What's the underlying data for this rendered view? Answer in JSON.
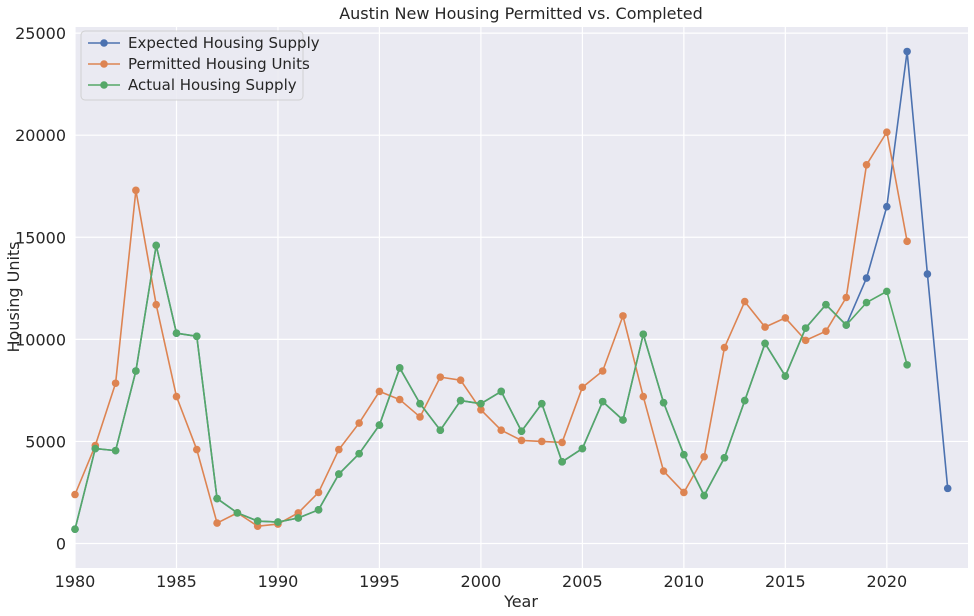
{
  "chart_data": {
    "type": "line",
    "title": "Austin New Housing Permitted vs. Completed",
    "xlabel": "Year",
    "ylabel": "Housing Units",
    "xlim": [
      1980,
      2024
    ],
    "ylim": [
      -1200,
      25300
    ],
    "x_ticks": [
      1980,
      1985,
      1990,
      1995,
      2000,
      2005,
      2010,
      2015,
      2020
    ],
    "y_ticks": [
      0,
      5000,
      10000,
      15000,
      20000,
      25000
    ],
    "grid": true,
    "legend_position": "top-left",
    "background": "#eaeaf2",
    "series": [
      {
        "name": "Expected Housing Supply",
        "color": "#4c72b0",
        "x": [
          1980,
          1981,
          1982,
          1983,
          1984,
          1985,
          1986,
          1987,
          1988,
          1989,
          1990,
          1991,
          1992,
          1993,
          1994,
          1995,
          1996,
          1997,
          1998,
          1999,
          2000,
          2001,
          2002,
          2003,
          2004,
          2005,
          2006,
          2007,
          2008,
          2009,
          2010,
          2011,
          2012,
          2013,
          2014,
          2015,
          2016,
          2017,
          2018,
          2019,
          2020,
          2021,
          2022,
          2023
        ],
        "values": [
          700,
          4650,
          4550,
          8450,
          14600,
          10300,
          10150,
          2200,
          1500,
          1100,
          1050,
          1250,
          1650,
          3400,
          4400,
          5800,
          8600,
          6850,
          5550,
          7000,
          6850,
          7450,
          5500,
          6850,
          4000,
          4650,
          6950,
          6050,
          10250,
          6900,
          4350,
          2350,
          4200,
          7000,
          9800,
          8200,
          10550,
          11700,
          10700,
          13000,
          16500,
          24100,
          13200,
          2700
        ]
      },
      {
        "name": "Permitted Housing Units",
        "color": "#dd8452",
        "x": [
          1980,
          1981,
          1982,
          1983,
          1984,
          1985,
          1986,
          1987,
          1988,
          1989,
          1990,
          1991,
          1992,
          1993,
          1994,
          1995,
          1996,
          1997,
          1998,
          1999,
          2000,
          2001,
          2002,
          2003,
          2004,
          2005,
          2006,
          2007,
          2008,
          2009,
          2010,
          2011,
          2012,
          2013,
          2014,
          2015,
          2016,
          2017,
          2018,
          2019,
          2020,
          2021
        ],
        "values": [
          2400,
          4800,
          7850,
          17300,
          11700,
          7200,
          4600,
          1000,
          1500,
          850,
          950,
          1500,
          2500,
          4600,
          5900,
          7450,
          7050,
          6200,
          8150,
          8000,
          6550,
          5550,
          5050,
          5000,
          4950,
          7650,
          8450,
          11150,
          7200,
          3550,
          2500,
          4250,
          9600,
          11850,
          10600,
          11050,
          9950,
          10400,
          12050,
          18550,
          20150,
          14800
        ]
      },
      {
        "name": "Actual Housing Supply",
        "color": "#55a868",
        "x": [
          1980,
          1981,
          1982,
          1983,
          1984,
          1985,
          1986,
          1987,
          1988,
          1989,
          1990,
          1991,
          1992,
          1993,
          1994,
          1995,
          1996,
          1997,
          1998,
          1999,
          2000,
          2001,
          2002,
          2003,
          2004,
          2005,
          2006,
          2007,
          2008,
          2009,
          2010,
          2011,
          2012,
          2013,
          2014,
          2015,
          2016,
          2017,
          2018,
          2019,
          2020,
          2021
        ],
        "values": [
          700,
          4650,
          4550,
          8450,
          14600,
          10300,
          10150,
          2200,
          1500,
          1100,
          1050,
          1250,
          1650,
          3400,
          4400,
          5800,
          8600,
          6850,
          5550,
          7000,
          6850,
          7450,
          5500,
          6850,
          4000,
          4650,
          6950,
          6050,
          10250,
          6900,
          4350,
          2350,
          4200,
          7000,
          9800,
          8200,
          10550,
          11700,
          10700,
          11800,
          12350,
          8750
        ]
      }
    ]
  }
}
